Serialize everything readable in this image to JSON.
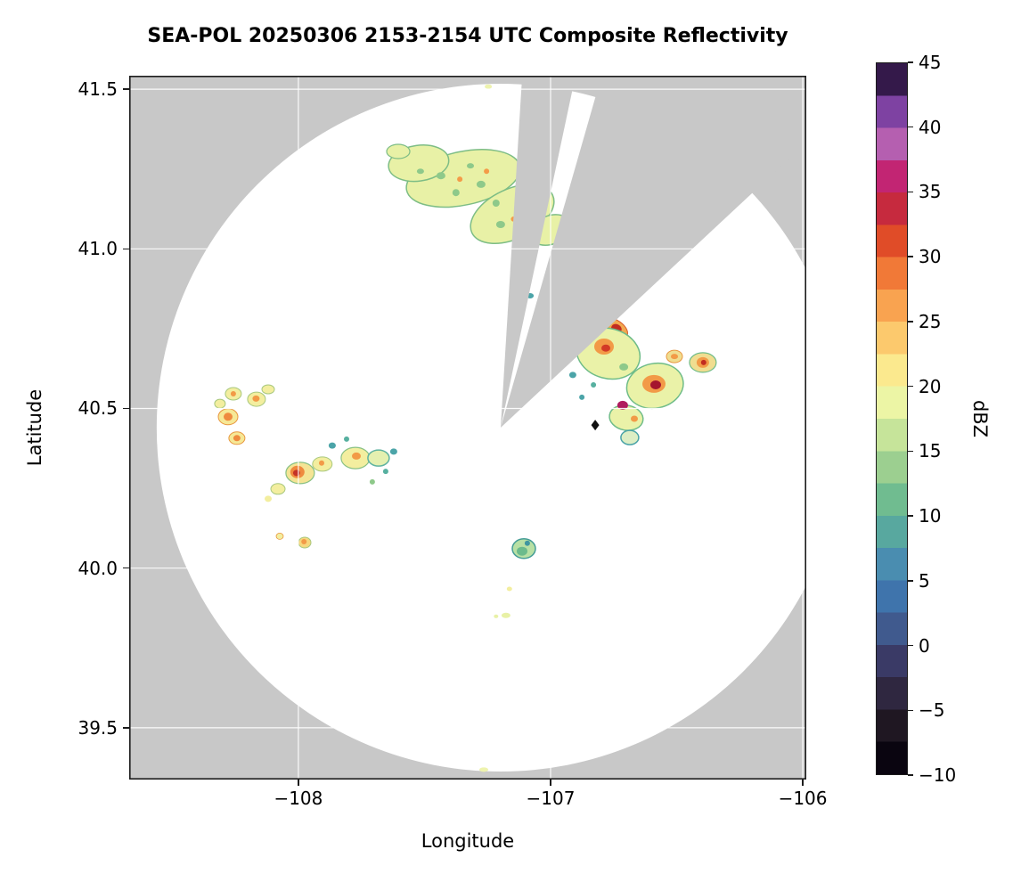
{
  "chart_data": {
    "type": "heatmap",
    "title": "SEA-POL 20250306 2153-2154 UTC Composite Reflectivity",
    "xlabel": "Longitude",
    "ylabel": "Latitude",
    "xlim": [
      -108.671,
      -105.986
    ],
    "ylim": [
      39.338,
      41.542
    ],
    "grid": true,
    "outside_color": "#c8c8c8",
    "inside_color": "#ffffff",
    "xticks": {
      "values": [
        -108,
        -107,
        -106
      ],
      "labels": [
        "−108",
        "−107",
        "−106"
      ]
    },
    "yticks": {
      "values": [
        41.5,
        41.0,
        40.5,
        40.0,
        39.5
      ],
      "labels": [
        "41.5",
        "41.0",
        "40.5",
        "40.0",
        "39.5"
      ]
    },
    "radar": {
      "lon": -107.198,
      "lat": 40.44,
      "range_deg_lon": 1.364,
      "range_deg_lat": 1.077,
      "marker_lon": -106.823,
      "marker_lat": 40.448
    },
    "blocked_sectors_deg": [
      [
        3.5,
        12
      ],
      [
        16,
        47
      ]
    ],
    "colorbar": {
      "label": "dBZ",
      "min": -10,
      "max": 45,
      "tick_values": [
        45,
        40,
        35,
        30,
        25,
        20,
        15,
        10,
        5,
        0,
        -5,
        -10
      ],
      "tick_labels": [
        "45",
        "40",
        "35",
        "30",
        "25",
        "20",
        "15",
        "10",
        "5",
        "0",
        "−5",
        "−10"
      ],
      "segments_bottom_to_top": [
        "#0a0510",
        "#1f1722",
        "#2f2740",
        "#3a3a66",
        "#405a8e",
        "#3f74ac",
        "#4a8db0",
        "#58a89f",
        "#70bc90",
        "#9ccf90",
        "#c6e49a",
        "#ecf5a5",
        "#fbe98e",
        "#fcc96d",
        "#f9a350",
        "#f17937",
        "#e04c28",
        "#c62a3e",
        "#c22573",
        "#b55fb0",
        "#7e42a2",
        "#34194a"
      ]
    },
    "echoes": [
      {
        "x": -107.346,
        "y": 41.221,
        "rx": 65,
        "ry": 30,
        "r": -12,
        "f": "#e8f1a6",
        "s": "#7dbd85",
        "w": 1.5
      },
      {
        "x": -107.152,
        "y": 41.109,
        "rx": 50,
        "ry": 28,
        "r": -25,
        "f": "#e8f1a6",
        "s": "#7dbd85",
        "w": 1.5
      },
      {
        "x": -107.523,
        "y": 41.268,
        "rx": 34,
        "ry": 20,
        "r": -8,
        "f": "#e8f1a6",
        "s": "#7dbd85",
        "w": 1.5
      },
      {
        "x": -107.0,
        "y": 41.059,
        "rx": 24,
        "ry": 16,
        "r": -20,
        "f": "#e8f1a6",
        "s": "#7dbd85",
        "w": 1.5
      },
      {
        "x": -107.604,
        "y": 41.305,
        "rx": 13,
        "ry": 8,
        "r": 0,
        "f": "#e8f1a6",
        "s": "#7dbd85",
        "w": 1.2
      },
      {
        "x": -107.435,
        "y": 41.229,
        "rx": 5,
        "ry": 4,
        "f": "#8ec98a"
      },
      {
        "x": -107.375,
        "y": 41.176,
        "rx": 4,
        "ry": 4,
        "f": "#8ec98a"
      },
      {
        "x": -107.276,
        "y": 41.202,
        "rx": 5,
        "ry": 4,
        "f": "#8ec98a"
      },
      {
        "x": -107.216,
        "y": 41.143,
        "rx": 4,
        "ry": 4,
        "f": "#8ec98a"
      },
      {
        "x": -107.113,
        "y": 41.115,
        "rx": 5,
        "ry": 4,
        "f": "#8ec98a"
      },
      {
        "x": -107.057,
        "y": 41.076,
        "rx": 4,
        "ry": 3,
        "f": "#8ec98a"
      },
      {
        "x": -107.318,
        "y": 41.26,
        "rx": 4,
        "ry": 3,
        "f": "#8ec98a"
      },
      {
        "x": -107.516,
        "y": 41.243,
        "rx": 4,
        "ry": 3,
        "f": "#8ec98a"
      },
      {
        "x": -107.198,
        "y": 41.076,
        "rx": 5,
        "ry": 4,
        "f": "#8ec98a"
      },
      {
        "x": -107.092,
        "y": 41.165,
        "rx": 4,
        "ry": 3,
        "f": "#8ec98a"
      },
      {
        "x": -107.36,
        "y": 41.218,
        "rx": 3,
        "ry": 3,
        "f": "#f49b48"
      },
      {
        "x": -107.254,
        "y": 41.243,
        "rx": 3,
        "ry": 3,
        "f": "#f49b48"
      },
      {
        "x": -107.145,
        "y": 41.093,
        "rx": 3.5,
        "ry": 3,
        "f": "#f49b48"
      },
      {
        "x": -107.081,
        "y": 40.853,
        "rx": 4,
        "ry": 3,
        "f": "#4ba4a8"
      },
      {
        "x": -106.753,
        "y": 40.752,
        "rx": 18,
        "ry": 10,
        "r": 28,
        "f": "#f2a94f",
        "s": "#d85c2c",
        "w": 1
      },
      {
        "x": -106.739,
        "y": 40.75,
        "rx": 6,
        "ry": 5,
        "r": 28,
        "f": "#c22b20"
      },
      {
        "x": -106.771,
        "y": 40.672,
        "rx": 36,
        "ry": 28,
        "r": 15,
        "f": "#eaf2a8",
        "s": "#6fbc88",
        "w": 1.5
      },
      {
        "x": -106.788,
        "y": 40.694,
        "rx": 11,
        "ry": 9,
        "f": "#f29a47"
      },
      {
        "x": -106.781,
        "y": 40.689,
        "rx": 5,
        "ry": 4,
        "f": "#d23a26"
      },
      {
        "x": -106.71,
        "y": 40.63,
        "rx": 5,
        "ry": 4,
        "f": "#8ec98a"
      },
      {
        "x": -106.586,
        "y": 40.571,
        "rx": 32,
        "ry": 25,
        "r": -12,
        "f": "#eaf2a8",
        "s": "#6fbc88",
        "w": 1.5
      },
      {
        "x": -106.59,
        "y": 40.577,
        "rx": 13,
        "ry": 10,
        "f": "#f29a47"
      },
      {
        "x": -106.583,
        "y": 40.574,
        "rx": 6,
        "ry": 5,
        "f": "#a5152e"
      },
      {
        "x": -106.396,
        "y": 40.644,
        "rx": 15,
        "ry": 11,
        "f": "#f0dd90",
        "s": "#6fbc88",
        "w": 1.2
      },
      {
        "x": -106.396,
        "y": 40.644,
        "rx": 7,
        "ry": 6,
        "f": "#f29a47"
      },
      {
        "x": -106.393,
        "y": 40.644,
        "rx": 3,
        "ry": 3,
        "f": "#c22b20"
      },
      {
        "x": -106.7,
        "y": 40.471,
        "rx": 19,
        "ry": 14,
        "r": 10,
        "f": "#eaf2a8",
        "s": "#6fbc88",
        "w": 1.5
      },
      {
        "x": -106.714,
        "y": 40.51,
        "rx": 6,
        "ry": 5,
        "f": "#b01c5e"
      },
      {
        "x": -106.668,
        "y": 40.468,
        "rx": 4,
        "ry": 3.5,
        "f": "#f29a47"
      },
      {
        "x": -106.686,
        "y": 40.409,
        "rx": 10,
        "ry": 8,
        "f": "#ddeec4",
        "s": "#4ba4a8",
        "w": 1.5
      },
      {
        "x": -106.912,
        "y": 40.605,
        "rx": 4,
        "ry": 3.5,
        "f": "#4ba4a8"
      },
      {
        "x": -106.876,
        "y": 40.535,
        "rx": 3,
        "ry": 3,
        "f": "#4ba4a8"
      },
      {
        "x": -106.83,
        "y": 40.574,
        "rx": 3,
        "ry": 3,
        "f": "#57b0a0"
      },
      {
        "x": -106.509,
        "y": 40.663,
        "rx": 9,
        "ry": 7,
        "f": "#f0dd90",
        "s": "#e8973f",
        "w": 1
      },
      {
        "x": -106.509,
        "y": 40.663,
        "rx": 4,
        "ry": 3,
        "f": "#f29a47"
      },
      {
        "x": -108.279,
        "y": 40.474,
        "rx": 11,
        "ry": 9,
        "f": "#f6e896",
        "s": "#e8973f",
        "w": 1
      },
      {
        "x": -108.279,
        "y": 40.474,
        "rx": 5,
        "ry": 4.5,
        "f": "#ef8a3e"
      },
      {
        "x": -108.258,
        "y": 40.546,
        "rx": 9,
        "ry": 7,
        "f": "#f3ee9f",
        "s": "#a8c87e",
        "w": 1
      },
      {
        "x": -108.258,
        "y": 40.546,
        "rx": 3,
        "ry": 3,
        "f": "#f29a47"
      },
      {
        "x": -108.166,
        "y": 40.529,
        "rx": 10,
        "ry": 8,
        "f": "#f3ee9f",
        "s": "#a8c87e",
        "w": 1
      },
      {
        "x": -108.168,
        "y": 40.531,
        "rx": 4,
        "ry": 3.5,
        "f": "#f29a47"
      },
      {
        "x": -108.12,
        "y": 40.56,
        "rx": 7,
        "ry": 5,
        "f": "#f3ee9f",
        "s": "#a8c87e",
        "w": 1
      },
      {
        "x": -108.244,
        "y": 40.407,
        "rx": 9,
        "ry": 7,
        "f": "#f6e896",
        "s": "#e8973f",
        "w": 1
      },
      {
        "x": -108.244,
        "y": 40.407,
        "rx": 4,
        "ry": 3.5,
        "f": "#ef8a3e"
      },
      {
        "x": -108.311,
        "y": 40.515,
        "rx": 6,
        "ry": 5,
        "f": "#f3ee9f",
        "s": "#a8c87e",
        "w": 1
      },
      {
        "x": -107.993,
        "y": 40.298,
        "rx": 16,
        "ry": 12,
        "f": "#f4e494",
        "s": "#89c184",
        "w": 1.2
      },
      {
        "x": -108.004,
        "y": 40.301,
        "rx": 8,
        "ry": 7,
        "f": "#ef8a3e"
      },
      {
        "x": -108.007,
        "y": 40.298,
        "rx": 4,
        "ry": 3.5,
        "f": "#c43326"
      },
      {
        "x": -107.905,
        "y": 40.326,
        "rx": 11,
        "ry": 8,
        "f": "#f3ee9f",
        "s": "#a8c87e",
        "w": 1
      },
      {
        "x": -107.908,
        "y": 40.329,
        "rx": 3,
        "ry": 3,
        "f": "#f29a47"
      },
      {
        "x": -107.774,
        "y": 40.345,
        "rx": 16,
        "ry": 12,
        "f": "#f3ee9f",
        "s": "#89c184",
        "w": 1.2
      },
      {
        "x": -107.77,
        "y": 40.351,
        "rx": 5,
        "ry": 4,
        "f": "#f29a47"
      },
      {
        "x": -107.682,
        "y": 40.345,
        "rx": 12,
        "ry": 9,
        "f": "#e4f0b0",
        "s": "#5fb3a0",
        "w": 1.5
      },
      {
        "x": -108.081,
        "y": 40.248,
        "rx": 8,
        "ry": 6,
        "f": "#f3ee9f",
        "s": "#a8c87e",
        "w": 1
      },
      {
        "x": -108.12,
        "y": 40.217,
        "rx": 4,
        "ry": 3.5,
        "f": "#f3ee9f"
      },
      {
        "x": -107.866,
        "y": 40.384,
        "rx": 4,
        "ry": 3.5,
        "f": "#4ba4a8"
      },
      {
        "x": -107.809,
        "y": 40.404,
        "rx": 3,
        "ry": 3,
        "f": "#57b0a0"
      },
      {
        "x": -107.622,
        "y": 40.365,
        "rx": 4,
        "ry": 3.5,
        "f": "#4ba4a8"
      },
      {
        "x": -107.654,
        "y": 40.303,
        "rx": 3,
        "ry": 3,
        "f": "#57b0a0"
      },
      {
        "x": -107.707,
        "y": 40.27,
        "rx": 3,
        "ry": 3,
        "f": "#8ec98a"
      },
      {
        "x": -108.074,
        "y": 40.1,
        "rx": 4,
        "ry": 3.5,
        "f": "#f3ee9f",
        "s": "#e8973f",
        "w": 0.8
      },
      {
        "x": -107.975,
        "y": 40.08,
        "rx": 7,
        "ry": 6,
        "f": "#f6d77d",
        "s": "#a8c87e",
        "w": 1
      },
      {
        "x": -107.978,
        "y": 40.083,
        "rx": 3,
        "ry": 3,
        "f": "#f29a47"
      },
      {
        "x": -107.106,
        "y": 40.061,
        "rx": 13,
        "ry": 11,
        "f": "#b8e0a4",
        "s": "#459d97",
        "w": 1.5
      },
      {
        "x": -107.113,
        "y": 40.053,
        "rx": 6,
        "ry": 5,
        "f": "#6cbb8c"
      },
      {
        "x": -107.092,
        "y": 40.078,
        "rx": 3,
        "ry": 3,
        "f": "#3f96a0"
      },
      {
        "x": -107.163,
        "y": 39.935,
        "rx": 3,
        "ry": 2.5,
        "f": "#f3ee9f"
      },
      {
        "x": -107.177,
        "y": 39.852,
        "rx": 5,
        "ry": 3,
        "f": "#e8f1a6"
      },
      {
        "x": -107.216,
        "y": 39.849,
        "rx": 2.5,
        "ry": 2,
        "f": "#e8f1a6"
      },
      {
        "x": -107.247,
        "y": 41.508,
        "rx": 4,
        "ry": 2.5,
        "f": "#eef3ae"
      },
      {
        "x": -107.265,
        "y": 39.369,
        "rx": 5,
        "ry": 2.5,
        "f": "#eef3ae"
      }
    ]
  }
}
